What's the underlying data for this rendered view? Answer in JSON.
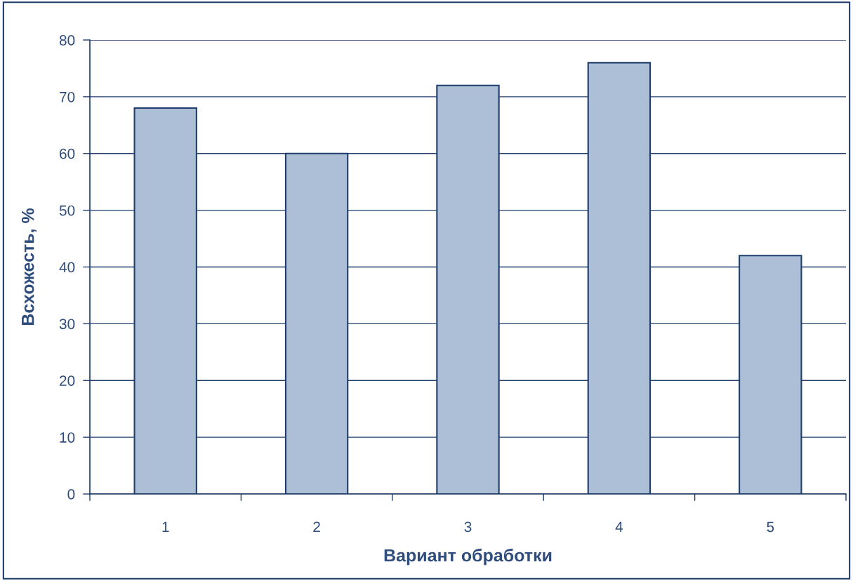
{
  "chart_data": {
    "type": "bar",
    "xlabel": "Вариант обработки",
    "ylabel": "Всхожесть, %",
    "categories": [
      "1",
      "2",
      "3",
      "4",
      "5"
    ],
    "values": [
      68,
      60,
      72,
      76,
      42
    ],
    "color": "#adbfd6",
    "ylim": [
      0,
      80
    ],
    "yticks": [
      0,
      10,
      20,
      30,
      40,
      50,
      60,
      70,
      80
    ],
    "grid": "y",
    "legend": false
  }
}
